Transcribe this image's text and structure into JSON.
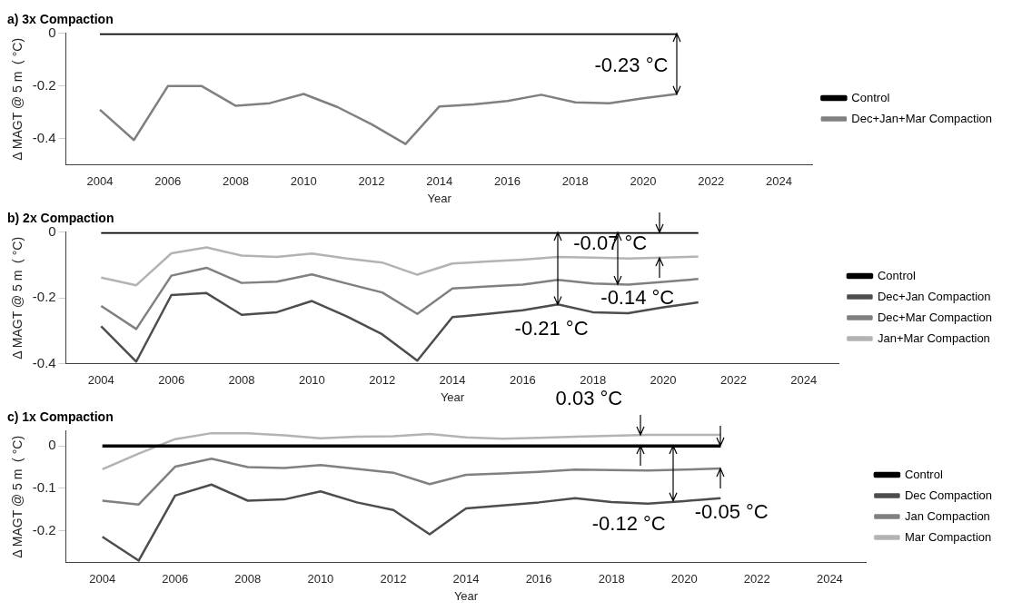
{
  "chart_data": [
    {
      "type": "line",
      "title": "a) 3x Compaction",
      "xlabel": "Year",
      "ylabel": "Δ MAGT @ 5 m  ( °C)",
      "x": [
        2004,
        2005,
        2006,
        2007,
        2008,
        2009,
        2010,
        2011,
        2012,
        2013,
        2014,
        2015,
        2016,
        2017,
        2018,
        2019,
        2020,
        2021
      ],
      "xlim": [
        2003,
        2025
      ],
      "xticks": [
        2004,
        2006,
        2008,
        2010,
        2012,
        2014,
        2016,
        2018,
        2020,
        2022,
        2024
      ],
      "ylim": [
        -0.5,
        0
      ],
      "yticks": [
        -0.4,
        -0.2,
        0
      ],
      "legend": "right",
      "series": [
        {
          "name": "Control",
          "color": "#000000",
          "values": [
            0,
            0,
            0,
            0,
            0,
            0,
            0,
            0,
            0,
            0,
            0,
            0,
            0,
            0,
            0,
            0,
            0,
            0
          ]
        },
        {
          "name": "Dec+Jan+Mar Compaction",
          "color": "#808080",
          "values": [
            -0.29,
            -0.405,
            -0.2,
            -0.2,
            -0.275,
            -0.265,
            -0.23,
            -0.28,
            -0.345,
            -0.42,
            -0.277,
            -0.27,
            -0.257,
            -0.233,
            -0.262,
            -0.265,
            -0.246,
            -0.23
          ]
        }
      ],
      "annotations": [
        {
          "text": "-0.23 °C",
          "x": 2021,
          "y": -0.23
        }
      ]
    },
    {
      "type": "line",
      "title": "b) 2x Compaction",
      "xlabel": "Year",
      "ylabel": "Δ MAGT @ 5 m  ( °C)",
      "x": [
        2004,
        2005,
        2006,
        2007,
        2008,
        2009,
        2010,
        2011,
        2012,
        2013,
        2014,
        2015,
        2016,
        2017,
        2018,
        2019,
        2020,
        2021
      ],
      "xlim": [
        2003,
        2025
      ],
      "xticks": [
        2004,
        2006,
        2008,
        2010,
        2012,
        2014,
        2016,
        2018,
        2020,
        2022,
        2024
      ],
      "ylim": [
        -0.4,
        0
      ],
      "yticks": [
        -0.4,
        -0.2,
        0
      ],
      "legend": "right",
      "series": [
        {
          "name": "Control",
          "color": "#000000",
          "values": [
            0,
            0,
            0,
            0,
            0,
            0,
            0,
            0,
            0,
            0,
            0,
            0,
            0,
            0,
            0,
            0,
            0,
            0
          ]
        },
        {
          "name": "Dec+Jan Compaction",
          "color": "#4d4d4d",
          "values": [
            -0.286,
            -0.393,
            -0.191,
            -0.185,
            -0.251,
            -0.243,
            -0.209,
            -0.256,
            -0.31,
            -0.39,
            -0.258,
            -0.248,
            -0.237,
            -0.219,
            -0.243,
            -0.246,
            -0.228,
            -0.213
          ]
        },
        {
          "name": "Dec+Mar Compaction",
          "color": "#808080",
          "values": [
            -0.224,
            -0.294,
            -0.132,
            -0.108,
            -0.154,
            -0.15,
            -0.128,
            -0.156,
            -0.183,
            -0.248,
            -0.171,
            -0.165,
            -0.159,
            -0.145,
            -0.156,
            -0.159,
            -0.151,
            -0.142
          ]
        },
        {
          "name": "Jan+Mar Compaction",
          "color": "#b3b3b3",
          "values": [
            -0.138,
            -0.161,
            -0.064,
            -0.046,
            -0.071,
            -0.075,
            -0.065,
            -0.08,
            -0.092,
            -0.129,
            -0.095,
            -0.089,
            -0.083,
            -0.075,
            -0.077,
            -0.08,
            -0.077,
            -0.074
          ]
        }
      ],
      "annotations": [
        {
          "text": "-0.21 °C",
          "x": 2017,
          "y": -0.219
        },
        {
          "text": "-0.14 °C",
          "x": 2018.7,
          "y": -0.157
        },
        {
          "text": "-0.07 °C",
          "x": 2019.9,
          "y": -0.077
        }
      ]
    },
    {
      "type": "line",
      "title": "c) 1x Compaction",
      "xlabel": "Year",
      "ylabel": "Δ MAGT @ 5 m  ( °C)",
      "x": [
        2004,
        2005,
        2006,
        2007,
        2008,
        2009,
        2010,
        2011,
        2012,
        2013,
        2014,
        2015,
        2016,
        2017,
        2018,
        2019,
        2020,
        2021
      ],
      "xlim": [
        2003,
        2025
      ],
      "xticks": [
        2004,
        2006,
        2008,
        2010,
        2012,
        2014,
        2016,
        2018,
        2020,
        2022,
        2024
      ],
      "ylim": [
        -0.275,
        0.035
      ],
      "yticks": [
        -0.2,
        -0.1,
        0
      ],
      "legend": "right",
      "series": [
        {
          "name": "Control",
          "color": "#000000",
          "values": [
            0,
            0,
            0,
            0,
            0,
            0,
            0,
            0,
            0,
            0,
            0,
            0,
            0,
            0,
            0,
            0,
            0,
            0
          ]
        },
        {
          "name": "Dec Compaction",
          "color": "#4d4d4d",
          "values": [
            -0.214,
            -0.27,
            -0.117,
            -0.091,
            -0.129,
            -0.126,
            -0.107,
            -0.133,
            -0.151,
            -0.208,
            -0.147,
            -0.14,
            -0.133,
            -0.123,
            -0.132,
            -0.136,
            -0.13,
            -0.123
          ]
        },
        {
          "name": "Jan Compaction",
          "color": "#808080",
          "values": [
            -0.129,
            -0.138,
            -0.049,
            -0.03,
            -0.05,
            -0.052,
            -0.045,
            -0.054,
            -0.063,
            -0.09,
            -0.068,
            -0.065,
            -0.061,
            -0.056,
            -0.057,
            -0.058,
            -0.056,
            -0.053
          ]
        },
        {
          "name": "Mar Compaction",
          "color": "#b3b3b3",
          "values": [
            -0.055,
            -0.018,
            0.016,
            0.03,
            0.03,
            0.025,
            0.018,
            0.022,
            0.023,
            0.028,
            0.02,
            0.017,
            0.019,
            0.022,
            0.024,
            0.026,
            0.026,
            0.026
          ]
        }
      ],
      "annotations": [
        {
          "text": "0.03 °C",
          "x": 2018.8,
          "y": 0.026
        },
        {
          "text": "-0.12 °C",
          "x": 2019.7,
          "y": -0.13
        },
        {
          "text": "-0.05 °C",
          "x": 2021,
          "y": -0.053
        }
      ]
    }
  ]
}
